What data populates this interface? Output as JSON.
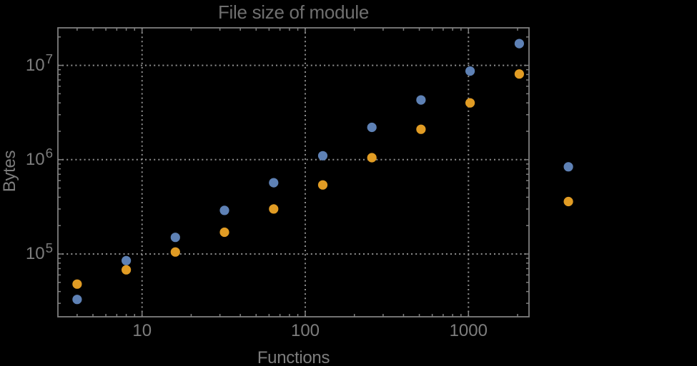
{
  "chart_data": {
    "type": "scatter",
    "title": "File size of module",
    "xlabel": "Functions",
    "ylabel": "Bytes",
    "x_scale": "log",
    "y_scale": "log",
    "xlim": [
      3.05,
      2350
    ],
    "ylim": [
      21600,
      25000000
    ],
    "grid": "dotted lines at every decade, both axes",
    "legend": "none",
    "x": [
      4,
      8,
      16,
      32,
      64,
      128,
      256,
      512,
      1024,
      2048,
      4096
    ],
    "series": [
      {
        "name": "blue",
        "color": "#5e81b5",
        "marker": "circle",
        "values": [
          33000,
          85000,
          150000,
          290000,
          570000,
          1100000,
          2200000,
          4300000,
          8700000,
          17000000,
          840000
        ]
      },
      {
        "name": "orange",
        "color": "#e19c24",
        "marker": "circle",
        "values": [
          48000,
          68000,
          105000,
          170000,
          300000,
          540000,
          1050000,
          2100000,
          4000000,
          8100000,
          360000
        ]
      }
    ],
    "x_ticks": [
      {
        "value": 10,
        "label": "10"
      },
      {
        "value": 100,
        "label": "100"
      },
      {
        "value": 1000,
        "label": "1000"
      }
    ],
    "y_ticks": [
      {
        "value": 100000,
        "base": "10",
        "exponent": "5"
      },
      {
        "value": 1000000,
        "base": "10",
        "exponent": "6"
      },
      {
        "value": 10000000,
        "base": "10",
        "exponent": "7"
      }
    ],
    "colors": {
      "background": "#000000",
      "frame": "#7f7f7f",
      "grid": "#8f8f8f",
      "tick_label": "#7d7d7d",
      "axis_label": "#7d7d7d",
      "title": "#6f6f6f"
    }
  }
}
